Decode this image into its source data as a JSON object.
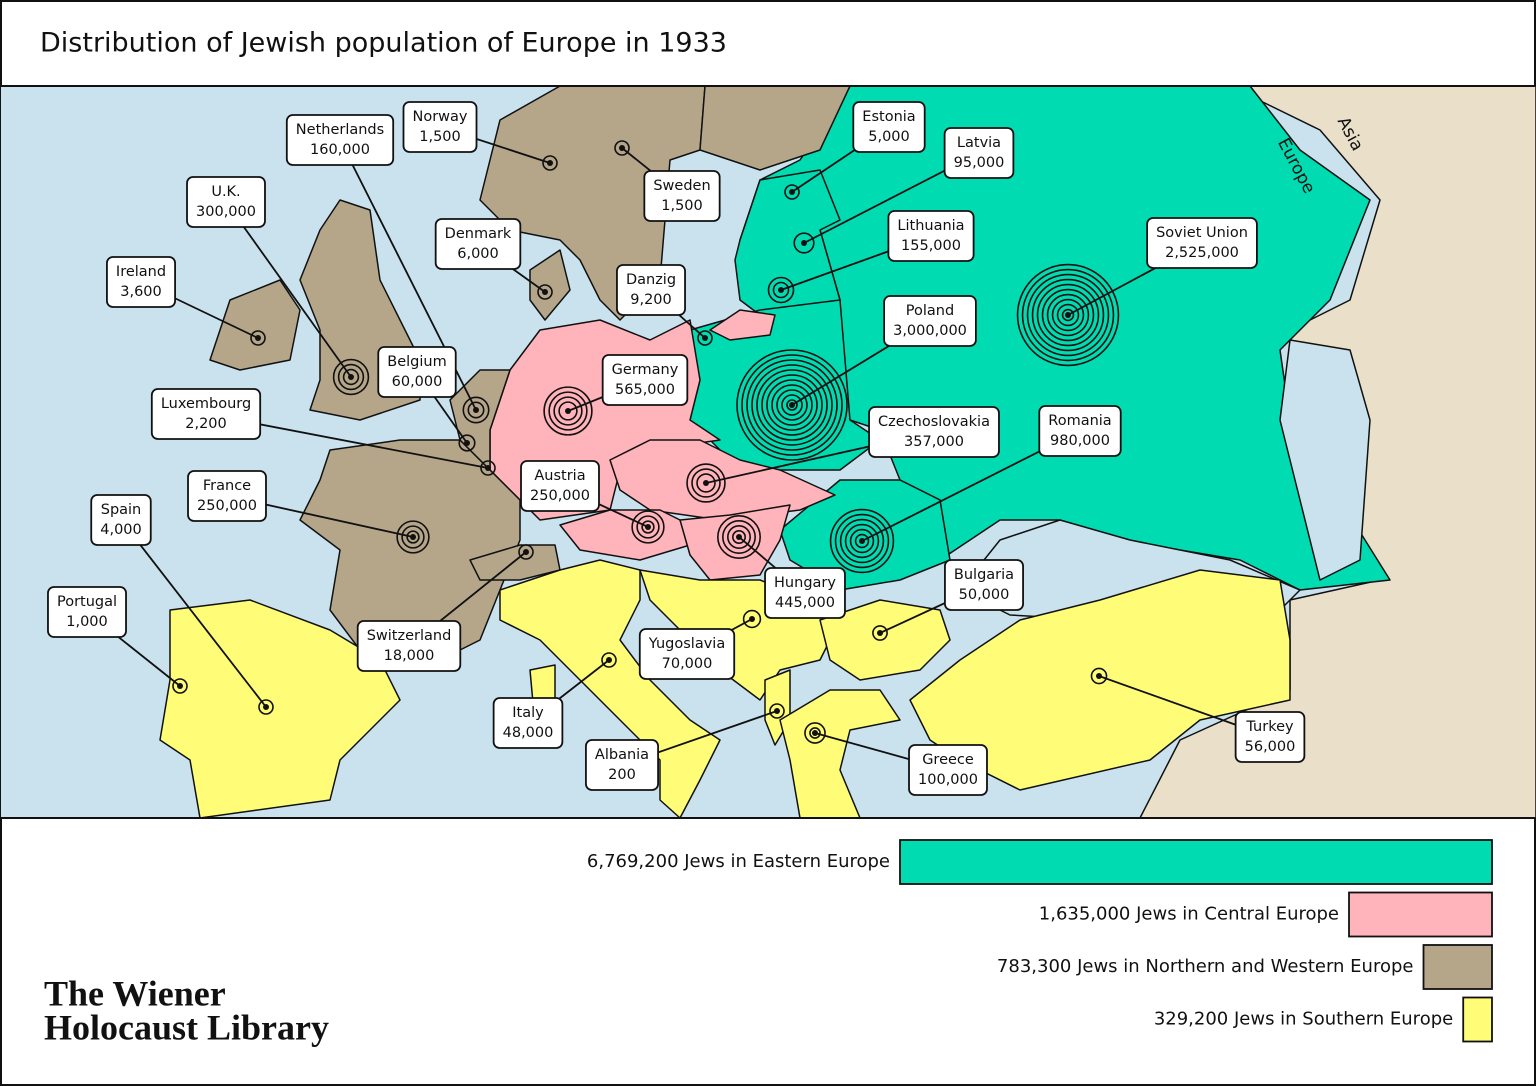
{
  "title": "Distribution of Jewish population of Europe in 1933",
  "map": {
    "region_labels": [
      "Europe",
      "Asia"
    ],
    "countries": [
      {
        "name": "U.K.",
        "population": 300000,
        "population_label": "300,000"
      },
      {
        "name": "Ireland",
        "population": 3600,
        "population_label": "3,600"
      },
      {
        "name": "Netherlands",
        "population": 160000,
        "population_label": "160,000"
      },
      {
        "name": "Norway",
        "population": 1500,
        "population_label": "1,500"
      },
      {
        "name": "Denmark",
        "population": 6000,
        "population_label": "6,000"
      },
      {
        "name": "Sweden",
        "population": 1500,
        "population_label": "1,500"
      },
      {
        "name": "Danzig",
        "population": 9200,
        "population_label": "9,200"
      },
      {
        "name": "Estonia",
        "population": 5000,
        "population_label": "5,000"
      },
      {
        "name": "Latvia",
        "population": 95000,
        "population_label": "95,000"
      },
      {
        "name": "Lithuania",
        "population": 155000,
        "population_label": "155,000"
      },
      {
        "name": "Poland",
        "population": 3000000,
        "population_label": "3,000,000"
      },
      {
        "name": "Soviet Union",
        "population": 2525000,
        "population_label": "2,525,000"
      },
      {
        "name": "Belgium",
        "population": 60000,
        "population_label": "60,000"
      },
      {
        "name": "Luxembourg",
        "population": 2200,
        "population_label": "2,200"
      },
      {
        "name": "Germany",
        "population": 565000,
        "population_label": "565,000"
      },
      {
        "name": "France",
        "population": 250000,
        "population_label": "250,000"
      },
      {
        "name": "Austria",
        "population": 250000,
        "population_label": "250,000"
      },
      {
        "name": "Czechoslovakia",
        "population": 357000,
        "population_label": "357,000"
      },
      {
        "name": "Romania",
        "population": 980000,
        "population_label": "980,000"
      },
      {
        "name": "Spain",
        "population": 4000,
        "population_label": "4,000"
      },
      {
        "name": "Portugal",
        "population": 1000,
        "population_label": "1,000"
      },
      {
        "name": "Switzerland",
        "population": 18000,
        "population_label": "18,000"
      },
      {
        "name": "Hungary",
        "population": 445000,
        "population_label": "445,000"
      },
      {
        "name": "Yugoslavia",
        "population": 70000,
        "population_label": "70,000"
      },
      {
        "name": "Bulgaria",
        "population": 50000,
        "population_label": "50,000"
      },
      {
        "name": "Italy",
        "population": 48000,
        "population_label": "48,000"
      },
      {
        "name": "Albania",
        "population": 200,
        "population_label": "200"
      },
      {
        "name": "Greece",
        "population": 100000,
        "population_label": "100,000"
      },
      {
        "name": "Turkey",
        "population": 56000,
        "population_label": "56,000"
      }
    ]
  },
  "legend": [
    {
      "value": 6769200,
      "label": "6,769,200 Jews in Eastern Europe",
      "color": "#00dbb1"
    },
    {
      "value": 1635000,
      "label": "1,635,000 Jews in Central Europe",
      "color": "#ffb3ba"
    },
    {
      "value": 783300,
      "label": "783,300 Jews in Northern and Western Europe",
      "color": "#b5a68a"
    },
    {
      "value": 329200,
      "label": "329,200 Jews in Southern Europe",
      "color": "#fffd77"
    }
  ],
  "logo": [
    "The Wiener",
    "Holocaust Library"
  ]
}
